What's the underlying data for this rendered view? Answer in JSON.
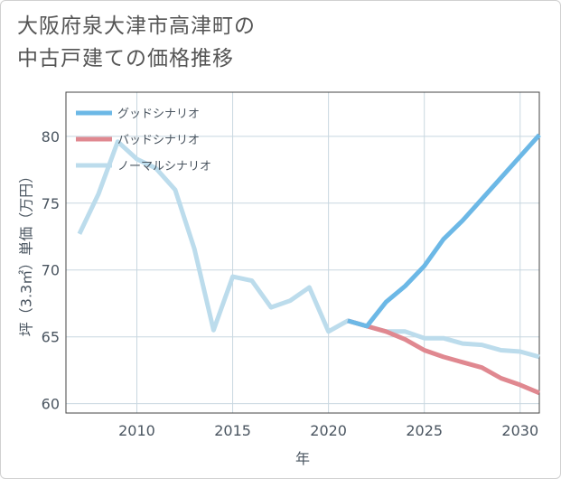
{
  "title_line1": "大阪府泉大津市高津町の",
  "title_line2": "中古戸建ての価格推移",
  "chart_data": {
    "type": "line",
    "xlabel": "年",
    "ylabel": "坪（3.3㎡）単価（万円）",
    "xlim": [
      2006.3,
      2031
    ],
    "ylim": [
      59.3,
      83.3
    ],
    "xticks": [
      2010,
      2015,
      2020,
      2025,
      2030
    ],
    "yticks": [
      60,
      65,
      70,
      75,
      80
    ],
    "legend_position": "top-left",
    "series": [
      {
        "name": "グッドシナリオ",
        "color": "#6cb8e6",
        "x": [
          2021,
          2022,
          2023,
          2024,
          2025,
          2026,
          2027,
          2028,
          2029,
          2030,
          2031
        ],
        "values": [
          66.2,
          65.8,
          67.6,
          68.8,
          70.3,
          72.3,
          73.7,
          75.3,
          76.9,
          78.5,
          80.1
        ]
      },
      {
        "name": "バッドシナリオ",
        "color": "#e08890",
        "x": [
          2021,
          2022,
          2023,
          2024,
          2025,
          2026,
          2027,
          2028,
          2029,
          2030,
          2031
        ],
        "values": [
          66.2,
          65.8,
          65.4,
          64.8,
          64.0,
          63.5,
          63.1,
          62.7,
          61.9,
          61.4,
          60.8
        ]
      },
      {
        "name": "ノーマルシナリオ",
        "color": "#bcdcec",
        "x": [
          2007,
          2008,
          2009,
          2010,
          2011,
          2012,
          2013,
          2014,
          2015,
          2016,
          2017,
          2018,
          2019,
          2020,
          2021,
          2022,
          2023,
          2024,
          2025,
          2026,
          2027,
          2028,
          2029,
          2030,
          2031
        ],
        "values": [
          72.7,
          75.7,
          79.6,
          78.3,
          77.6,
          76.0,
          71.6,
          65.5,
          69.5,
          69.2,
          67.2,
          67.7,
          68.7,
          65.4,
          66.2,
          65.8,
          65.4,
          65.4,
          64.9,
          64.9,
          64.5,
          64.4,
          64.0,
          63.9,
          63.5
        ]
      }
    ]
  }
}
